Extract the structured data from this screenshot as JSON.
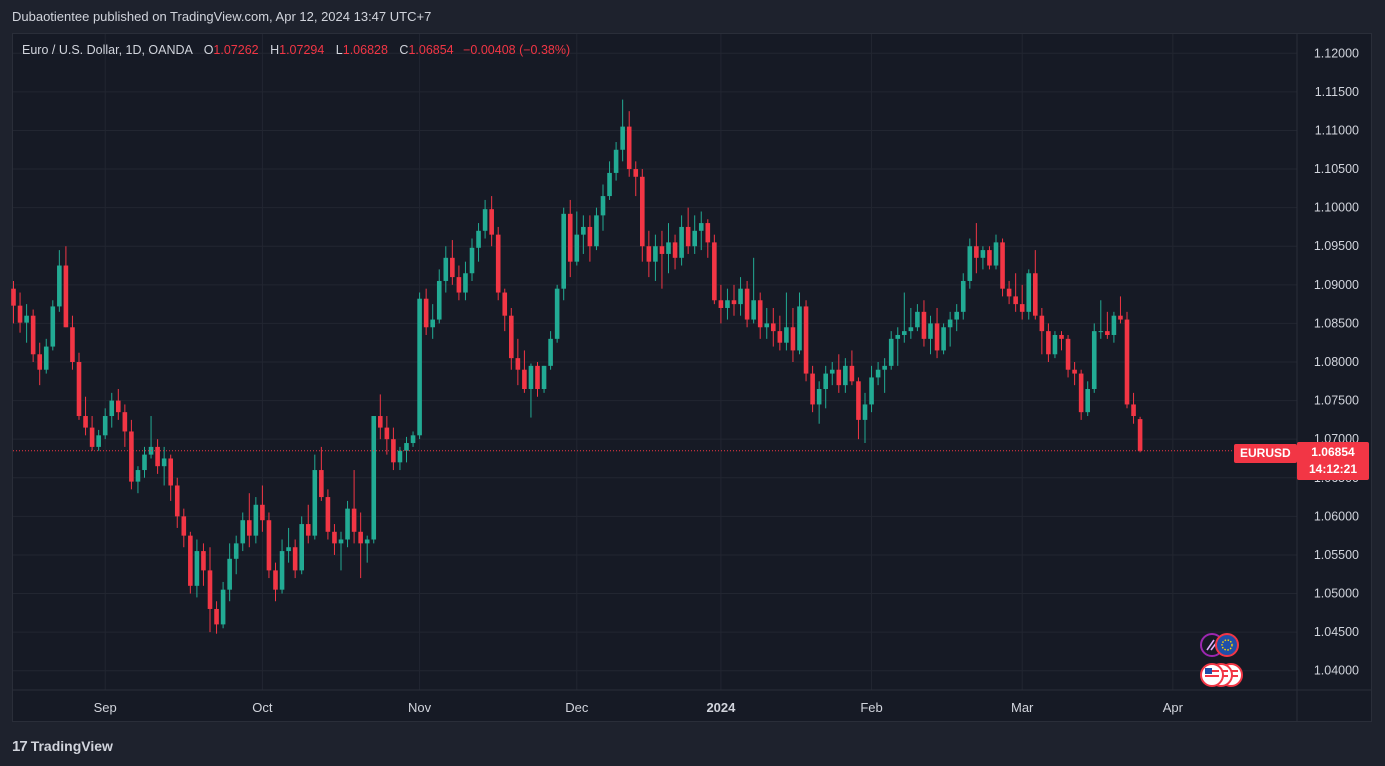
{
  "header": {
    "text": "Dubaotientee published on TradingView.com, Apr 12, 2024 13:47 UTC+7"
  },
  "legend": {
    "symbol": "Euro / U.S. Dollar, 1D, OANDA",
    "o_label": "O",
    "o_value": "1.07262",
    "h_label": "H",
    "h_value": "1.07294",
    "l_label": "L",
    "l_value": "1.06828",
    "c_label": "C",
    "c_value": "1.06854",
    "change": "−0.00408 (−0.38%)"
  },
  "last_price": {
    "symbol": "EURUSD",
    "price": "1.06854",
    "countdown": "14:12:21"
  },
  "footer": {
    "brand": "TradingView",
    "logo_text": "17"
  },
  "colors": {
    "up": "#22ab94",
    "down": "#f23645",
    "background": "#161a25",
    "grid": "#222631",
    "text": "#d1d4dc"
  },
  "events": {
    "top_icons": [
      "pencil-event-icon",
      "eu-flag-icon"
    ],
    "bottom_icons": [
      "us-flag-icon",
      "us-flag-icon",
      "us-flag-icon"
    ]
  },
  "chart_data": {
    "type": "candlestick",
    "title": "Euro / U.S. Dollar, 1D, OANDA",
    "ylim": [
      1.0375,
      1.1225
    ],
    "y_ticks": [
      "1.12000",
      "1.11500",
      "1.11000",
      "1.10500",
      "1.10000",
      "1.09500",
      "1.09000",
      "1.08500",
      "1.08000",
      "1.07500",
      "1.07000",
      "1.06500",
      "1.06000",
      "1.05500",
      "1.05000",
      "1.04500",
      "1.04000"
    ],
    "x_ticks": [
      {
        "label": "Sep",
        "index": 14
      },
      {
        "label": "Oct",
        "index": 38
      },
      {
        "label": "Nov",
        "index": 62
      },
      {
        "label": "Dec",
        "index": 86
      },
      {
        "label": "2024",
        "index": 108
      },
      {
        "label": "Feb",
        "index": 131
      },
      {
        "label": "Mar",
        "index": 154
      },
      {
        "label": "Apr",
        "index": 177
      }
    ],
    "grid": true,
    "candles": [
      [
        1.0895,
        1.0905,
        1.085,
        1.0873
      ],
      [
        1.0873,
        1.089,
        1.0838,
        1.0851
      ],
      [
        1.0851,
        1.0875,
        1.0825,
        1.086
      ],
      [
        1.086,
        1.0868,
        1.08,
        1.081
      ],
      [
        1.081,
        1.0825,
        1.077,
        1.079
      ],
      [
        1.079,
        1.083,
        1.0785,
        1.082
      ],
      [
        1.082,
        1.088,
        1.0815,
        1.0872
      ],
      [
        1.0872,
        1.0945,
        1.0865,
        1.0925
      ],
      [
        1.0925,
        1.095,
        1.0845,
        1.0845
      ],
      [
        1.0845,
        1.086,
        1.079,
        1.08
      ],
      [
        1.08,
        1.0812,
        1.0725,
        1.073
      ],
      [
        1.073,
        1.0755,
        1.0705,
        1.0715
      ],
      [
        1.0715,
        1.073,
        1.0685,
        1.069
      ],
      [
        1.069,
        1.0712,
        1.0685,
        1.0705
      ],
      [
        1.0705,
        1.074,
        1.07,
        1.073
      ],
      [
        1.073,
        1.076,
        1.0715,
        1.075
      ],
      [
        1.075,
        1.0765,
        1.0725,
        1.0735
      ],
      [
        1.0735,
        1.0745,
        1.069,
        1.071
      ],
      [
        1.071,
        1.0725,
        1.0635,
        1.0645
      ],
      [
        1.0645,
        1.0665,
        1.063,
        1.066
      ],
      [
        1.066,
        1.069,
        1.065,
        1.068
      ],
      [
        1.068,
        1.073,
        1.0675,
        1.069
      ],
      [
        1.069,
        1.07,
        1.0655,
        1.0665
      ],
      [
        1.0665,
        1.069,
        1.064,
        1.0675
      ],
      [
        1.0675,
        1.068,
        1.062,
        1.064
      ],
      [
        1.064,
        1.065,
        1.0585,
        1.06
      ],
      [
        1.06,
        1.061,
        1.056,
        1.0575
      ],
      [
        1.0575,
        1.058,
        1.05,
        1.051
      ],
      [
        1.051,
        1.057,
        1.0495,
        1.0555
      ],
      [
        1.0555,
        1.0565,
        1.051,
        1.053
      ],
      [
        1.053,
        1.056,
        1.045,
        1.048
      ],
      [
        1.048,
        1.049,
        1.0448,
        1.046
      ],
      [
        1.046,
        1.0515,
        1.0455,
        1.0505
      ],
      [
        1.0505,
        1.0565,
        1.049,
        1.0545
      ],
      [
        1.0545,
        1.0575,
        1.0525,
        1.0565
      ],
      [
        1.0565,
        1.0605,
        1.0555,
        1.0595
      ],
      [
        1.0595,
        1.063,
        1.056,
        1.0575
      ],
      [
        1.0575,
        1.0625,
        1.0565,
        1.0615
      ],
      [
        1.0615,
        1.064,
        1.058,
        1.0595
      ],
      [
        1.0595,
        1.0605,
        1.052,
        1.053
      ],
      [
        1.053,
        1.054,
        1.049,
        1.0505
      ],
      [
        1.0505,
        1.057,
        1.05,
        1.0555
      ],
      [
        1.0555,
        1.0585,
        1.054,
        1.056
      ],
      [
        1.056,
        1.057,
        1.052,
        1.053
      ],
      [
        1.053,
        1.06,
        1.0525,
        1.059
      ],
      [
        1.059,
        1.0615,
        1.0565,
        1.0575
      ],
      [
        1.0575,
        1.068,
        1.057,
        1.066
      ],
      [
        1.066,
        1.069,
        1.062,
        1.0625
      ],
      [
        1.0625,
        1.0635,
        1.057,
        1.058
      ],
      [
        1.058,
        1.059,
        1.055,
        1.0565
      ],
      [
        1.0565,
        1.058,
        1.053,
        1.057
      ],
      [
        1.057,
        1.062,
        1.056,
        1.061
      ],
      [
        1.061,
        1.066,
        1.0565,
        1.058
      ],
      [
        1.058,
        1.0605,
        1.052,
        1.0565
      ],
      [
        1.0565,
        1.0575,
        1.054,
        1.057
      ],
      [
        1.057,
        1.073,
        1.0565,
        1.073
      ],
      [
        1.073,
        1.0758,
        1.07,
        1.0715
      ],
      [
        1.0715,
        1.073,
        1.068,
        1.07
      ],
      [
        1.07,
        1.0715,
        1.066,
        1.067
      ],
      [
        1.067,
        1.069,
        1.066,
        1.0685
      ],
      [
        1.0685,
        1.0703,
        1.067,
        1.0695
      ],
      [
        1.0695,
        1.071,
        1.069,
        1.0705
      ],
      [
        1.0705,
        1.089,
        1.07,
        1.0882
      ],
      [
        1.0882,
        1.0895,
        1.0835,
        1.0845
      ],
      [
        1.0845,
        1.0875,
        1.083,
        1.0855
      ],
      [
        1.0855,
        1.092,
        1.085,
        1.0905
      ],
      [
        1.0905,
        1.095,
        1.089,
        1.0935
      ],
      [
        1.0935,
        1.0958,
        1.09,
        1.091
      ],
      [
        1.091,
        1.0925,
        1.088,
        1.089
      ],
      [
        1.089,
        1.093,
        1.088,
        1.0915
      ],
      [
        1.0915,
        1.096,
        1.0905,
        1.0948
      ],
      [
        1.0948,
        1.098,
        1.093,
        1.097
      ],
      [
        1.097,
        1.101,
        1.096,
        1.0998
      ],
      [
        1.0998,
        1.1015,
        1.095,
        1.0965
      ],
      [
        1.0965,
        1.0975,
        1.088,
        1.089
      ],
      [
        1.089,
        1.0895,
        1.084,
        1.086
      ],
      [
        1.086,
        1.087,
        1.079,
        1.0805
      ],
      [
        1.0805,
        1.083,
        1.077,
        1.079
      ],
      [
        1.079,
        1.0815,
        1.076,
        1.0765
      ],
      [
        1.0765,
        1.0798,
        1.0728,
        1.0795
      ],
      [
        1.0795,
        1.08,
        1.0755,
        1.0765
      ],
      [
        1.0765,
        1.0795,
        1.076,
        1.0795
      ],
      [
        1.0795,
        1.084,
        1.079,
        1.083
      ],
      [
        1.083,
        1.09,
        1.0825,
        1.0895
      ],
      [
        1.0895,
        1.1,
        1.088,
        1.0992
      ],
      [
        1.0992,
        1.101,
        1.091,
        1.093
      ],
      [
        1.093,
        1.0995,
        1.0925,
        1.0965
      ],
      [
        1.0965,
        1.099,
        1.094,
        1.0975
      ],
      [
        1.0975,
        1.099,
        1.093,
        1.095
      ],
      [
        1.095,
        1.1,
        1.0945,
        1.099
      ],
      [
        1.099,
        1.103,
        1.097,
        1.1015
      ],
      [
        1.1015,
        1.106,
        1.101,
        1.1045
      ],
      [
        1.1045,
        1.1085,
        1.1035,
        1.1075
      ],
      [
        1.1075,
        1.114,
        1.106,
        1.1105
      ],
      [
        1.1105,
        1.1125,
        1.104,
        1.105
      ],
      [
        1.105,
        1.106,
        1.1015,
        1.104
      ],
      [
        1.104,
        1.105,
        1.093,
        1.095
      ],
      [
        1.095,
        1.097,
        1.091,
        1.093
      ],
      [
        1.093,
        1.0965,
        1.0905,
        1.095
      ],
      [
        1.095,
        1.097,
        1.0895,
        1.094
      ],
      [
        1.094,
        1.098,
        1.0915,
        1.0955
      ],
      [
        1.0955,
        1.0965,
        1.092,
        1.0935
      ],
      [
        1.0935,
        1.099,
        1.0925,
        1.0975
      ],
      [
        1.0975,
        1.1,
        1.094,
        1.095
      ],
      [
        1.095,
        1.099,
        1.094,
        1.097
      ],
      [
        1.097,
        1.0995,
        1.0945,
        1.098
      ],
      [
        1.098,
        1.0985,
        1.0935,
        1.0955
      ],
      [
        1.0955,
        1.0965,
        1.0875,
        1.088
      ],
      [
        1.088,
        1.09,
        1.085,
        1.087
      ],
      [
        1.087,
        1.0895,
        1.0855,
        1.088
      ],
      [
        1.088,
        1.09,
        1.086,
        1.0875
      ],
      [
        1.0875,
        1.091,
        1.086,
        1.0895
      ],
      [
        1.0895,
        1.0905,
        1.0845,
        1.0855
      ],
      [
        1.0855,
        1.0935,
        1.085,
        1.088
      ],
      [
        1.088,
        1.089,
        1.083,
        1.0845
      ],
      [
        1.0845,
        1.087,
        1.083,
        1.085
      ],
      [
        1.085,
        1.087,
        1.082,
        1.084
      ],
      [
        1.084,
        1.086,
        1.0815,
        1.0825
      ],
      [
        1.0825,
        1.089,
        1.0815,
        1.0845
      ],
      [
        1.0845,
        1.087,
        1.08,
        1.0815
      ],
      [
        1.0815,
        1.089,
        1.081,
        1.0872
      ],
      [
        1.0872,
        1.088,
        1.0775,
        1.0785
      ],
      [
        1.0785,
        1.0795,
        1.0735,
        1.0745
      ],
      [
        1.0745,
        1.0775,
        1.072,
        1.0765
      ],
      [
        1.0765,
        1.0795,
        1.074,
        1.0785
      ],
      [
        1.0785,
        1.08,
        1.077,
        1.079
      ],
      [
        1.079,
        1.081,
        1.076,
        1.077
      ],
      [
        1.077,
        1.0805,
        1.076,
        1.0795
      ],
      [
        1.0795,
        1.0815,
        1.077,
        1.0775
      ],
      [
        1.0775,
        1.078,
        1.07,
        1.0725
      ],
      [
        1.0725,
        1.076,
        1.0695,
        1.0745
      ],
      [
        1.0745,
        1.0795,
        1.0735,
        1.078
      ],
      [
        1.078,
        1.08,
        1.077,
        1.079
      ],
      [
        1.079,
        1.0805,
        1.076,
        1.0795
      ],
      [
        1.0795,
        1.084,
        1.079,
        1.083
      ],
      [
        1.083,
        1.0845,
        1.0795,
        1.0835
      ],
      [
        1.0835,
        1.089,
        1.0825,
        1.084
      ],
      [
        1.084,
        1.087,
        1.083,
        1.0845
      ],
      [
        1.0845,
        1.0875,
        1.084,
        1.0865
      ],
      [
        1.0865,
        1.088,
        1.082,
        1.083
      ],
      [
        1.083,
        1.086,
        1.081,
        1.085
      ],
      [
        1.085,
        1.087,
        1.0805,
        1.0815
      ],
      [
        1.0815,
        1.085,
        1.081,
        1.0845
      ],
      [
        1.0845,
        1.0865,
        1.082,
        1.0855
      ],
      [
        1.0855,
        1.0875,
        1.084,
        1.0865
      ],
      [
        1.0865,
        1.0915,
        1.0855,
        1.0905
      ],
      [
        1.0905,
        1.096,
        1.0895,
        1.095
      ],
      [
        1.095,
        1.098,
        1.0915,
        1.0935
      ],
      [
        1.0935,
        1.095,
        1.092,
        1.0945
      ],
      [
        1.0945,
        1.095,
        1.092,
        1.0925
      ],
      [
        1.0925,
        1.0965,
        1.092,
        1.0955
      ],
      [
        1.0955,
        1.096,
        1.0885,
        1.0895
      ],
      [
        1.0895,
        1.0905,
        1.0875,
        1.0885
      ],
      [
        1.0885,
        1.0915,
        1.0865,
        1.0875
      ],
      [
        1.0875,
        1.09,
        1.0855,
        1.0865
      ],
      [
        1.0865,
        1.092,
        1.0855,
        1.0915
      ],
      [
        1.0915,
        1.0945,
        1.0855,
        1.086
      ],
      [
        1.086,
        1.087,
        1.081,
        1.084
      ],
      [
        1.084,
        1.085,
        1.08,
        1.081
      ],
      [
        1.081,
        1.084,
        1.0805,
        1.0835
      ],
      [
        1.0835,
        1.084,
        1.0815,
        1.083
      ],
      [
        1.083,
        1.0835,
        1.078,
        1.079
      ],
      [
        1.079,
        1.08,
        1.077,
        1.0785
      ],
      [
        1.0785,
        1.079,
        1.0725,
        1.0735
      ],
      [
        1.0735,
        1.0775,
        1.073,
        1.0765
      ],
      [
        1.0765,
        1.085,
        1.076,
        1.084
      ],
      [
        1.084,
        1.088,
        1.083,
        1.084
      ],
      [
        1.084,
        1.0865,
        1.083,
        1.0835
      ],
      [
        1.0835,
        1.0865,
        1.0825,
        1.086
      ],
      [
        1.086,
        1.0885,
        1.085,
        1.0855
      ],
      [
        1.0855,
        1.0865,
        1.074,
        1.0745
      ],
      [
        1.0745,
        1.076,
        1.072,
        1.073
      ],
      [
        1.0726,
        1.0729,
        1.0683,
        1.0685
      ]
    ]
  }
}
